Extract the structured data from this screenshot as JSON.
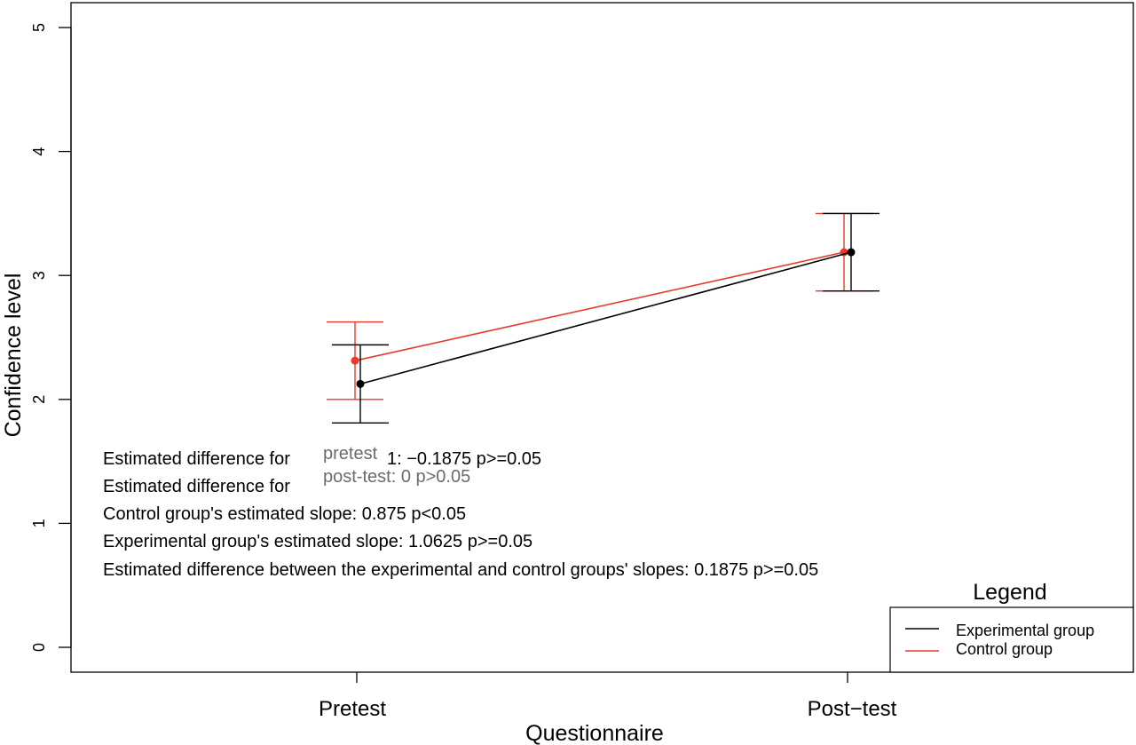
{
  "chart_data": {
    "type": "line",
    "title": "",
    "xlabel": "Questionnaire",
    "ylabel": "Confidence level",
    "categories": [
      "Pretest",
      "Post−test"
    ],
    "ylim": [
      0,
      5
    ],
    "yticks": [
      0,
      1,
      2,
      3,
      4,
      5
    ],
    "grid": false,
    "series": [
      {
        "name": "Experimental group",
        "color": "#000000",
        "values": [
          2.125,
          3.1875
        ],
        "ci_low": [
          1.81,
          2.875
        ],
        "ci_high": [
          2.44,
          3.5
        ]
      },
      {
        "name": "Control group",
        "color": "#e8392b",
        "values": [
          2.3125,
          3.1875
        ],
        "ci_low": [
          2.0,
          2.875
        ],
        "ci_high": [
          2.625,
          3.5
        ]
      }
    ],
    "legend": {
      "title": "Legend",
      "placement": "bottom-right"
    },
    "annotations": [
      "Estimated difference for",
      "Estimated difference for",
      "Control group's estimated slope: 0.875 p<0.05",
      "Experimental group's estimated slope: 1.0625 p>=0.05",
      "Estimated difference between the experimental and control groups' slopes: 0.1875 p>=0.05"
    ],
    "annotation_fragments": [
      "1: −0.1875 p>=0.05",
      "pretest",
      "post-test: 0 p>0.05"
    ]
  }
}
